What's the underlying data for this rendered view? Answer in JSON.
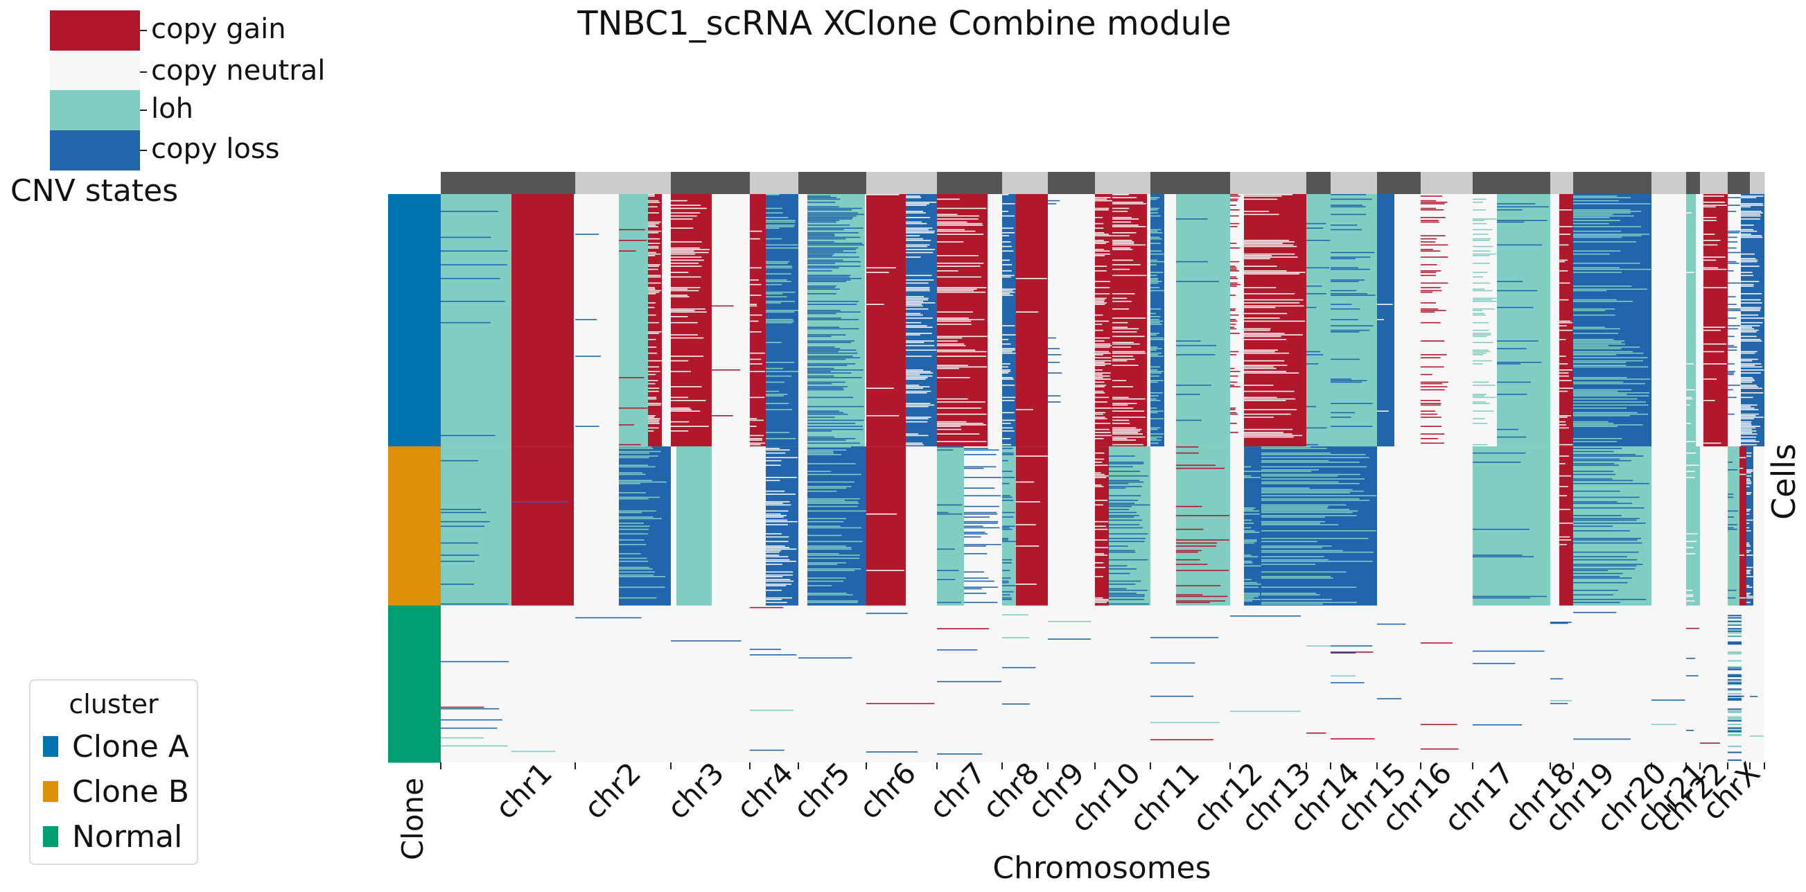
{
  "chart_data": {
    "type": "heatmap",
    "title": "TNBC1_scRNA XClone Combine module",
    "xlabel": "Chromosomes",
    "ylabel": "Cells",
    "annotation_label": "Clone",
    "chromosomes": [
      "chr1",
      "chr2",
      "chr3",
      "chr4",
      "chr5",
      "chr6",
      "chr7",
      "chr8",
      "chr9",
      "chr10",
      "chr11",
      "chr12",
      "chr13",
      "chr14",
      "chr15",
      "chr16",
      "chr17",
      "chr18",
      "chr19",
      "chr20",
      "chr21",
      "chr22",
      "chrX"
    ],
    "cnv_legend": {
      "title": "CNV states",
      "states": [
        {
          "label": "copy gain",
          "color": "#b2182b"
        },
        {
          "label": "copy neutral",
          "color": "#f7f7f7"
        },
        {
          "label": "loh",
          "color": "#80cdc1"
        },
        {
          "label": "copy loss",
          "color": "#2166ac"
        }
      ]
    },
    "cluster_legend": {
      "title": "cluster",
      "clusters": [
        {
          "name": "Clone A",
          "color": "#0173b2"
        },
        {
          "name": "Clone B",
          "color": "#de8f05"
        },
        {
          "name": "Normal",
          "color": "#029e73"
        }
      ]
    },
    "row_group_fractions": [
      0.444,
      0.28,
      0.276
    ],
    "cell_states_by_clone": {
      "Clone A": {
        "chr1": [
          "loh",
          "copy gain"
        ],
        "chr2": [
          "copy neutral",
          "loh",
          "copy gain"
        ],
        "chr3": [
          "copy gain",
          "copy neutral"
        ],
        "chr4": [
          "copy gain",
          "copy loss"
        ],
        "chr5": [
          "copy loss",
          "loh"
        ],
        "chr6": [
          "copy gain",
          "copy loss"
        ],
        "chr7": [
          "copy gain"
        ],
        "chr8": [
          "copy loss",
          "copy gain"
        ],
        "chr9": [
          "copy neutral"
        ],
        "chr10": [
          "copy gain",
          "copy loss"
        ],
        "chr11": [
          "loh"
        ],
        "chr12": [
          "copy gain"
        ],
        "chr13": [
          "loh"
        ],
        "chr14": [
          "loh",
          "copy loss"
        ],
        "chr15": [
          "copy neutral"
        ],
        "chr16": [
          "copy gain"
        ],
        "chr17": [
          "loh"
        ],
        "chr18": [
          "copy gain"
        ],
        "chr19": [
          "copy loss",
          "loh"
        ],
        "chr20": [
          "copy neutral"
        ],
        "chr21": [
          "loh"
        ],
        "chr22": [
          "copy gain"
        ],
        "chrX": [
          "copy loss"
        ]
      },
      "Clone B": {
        "chr1": [
          "loh",
          "copy gain"
        ],
        "chr2": [
          "copy loss"
        ],
        "chr3": [
          "loh"
        ],
        "chr4": [
          "copy loss"
        ],
        "chr5": [
          "copy loss",
          "loh"
        ],
        "chr6": [
          "copy gain"
        ],
        "chr7": [
          "loh",
          "copy loss"
        ],
        "chr8": [
          "copy gain"
        ],
        "chr9": [
          "copy neutral"
        ],
        "chr10": [
          "loh",
          "copy loss"
        ],
        "chr11": [
          "loh",
          "copy gain"
        ],
        "chr12": [
          "copy loss"
        ],
        "chr13": [
          "copy loss"
        ],
        "chr14": [
          "copy loss"
        ],
        "chr15": [
          "copy neutral"
        ],
        "chr16": [
          "copy neutral"
        ],
        "chr17": [
          "loh"
        ],
        "chr18": [
          "copy gain"
        ],
        "chr19": [
          "copy loss",
          "loh"
        ],
        "chr20": [
          "copy neutral"
        ],
        "chr21": [
          "loh"
        ],
        "chr22": [
          "loh"
        ],
        "chrX": [
          "copy gain",
          "copy loss"
        ]
      },
      "Normal": {
        "all": [
          "copy neutral"
        ]
      }
    },
    "grid": false
  }
}
